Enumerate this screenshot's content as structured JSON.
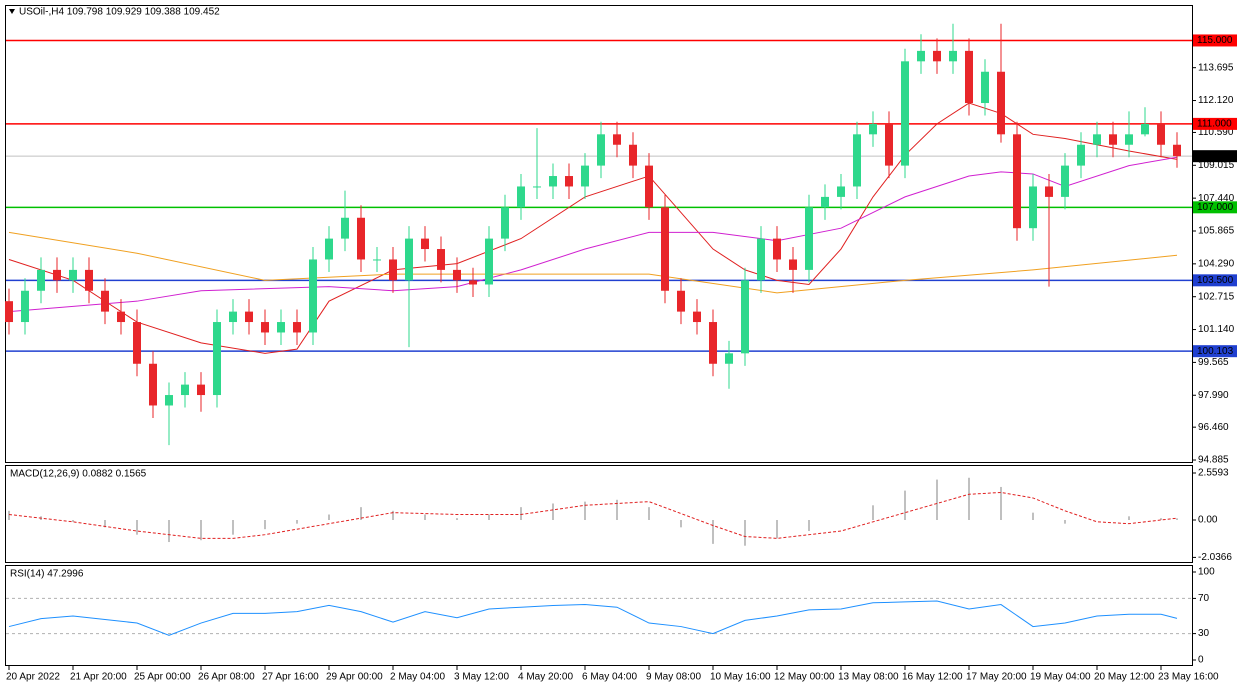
{
  "chart_data": {
    "type": "candlestick",
    "title": "USOil-,H4  109.798 109.929 109.388 109.452",
    "categories": [
      "20 Apr 2022",
      null,
      null,
      null,
      "21 Apr 20:00",
      null,
      null,
      null,
      "25 Apr 00:00",
      null,
      null,
      null,
      "26 Apr 08:00",
      null,
      null,
      null,
      "27 Apr 16:00",
      null,
      null,
      null,
      "29 Apr 00:00",
      null,
      null,
      null,
      "2 May 04:00",
      null,
      null,
      null,
      "3 May 12:00",
      null,
      null,
      null,
      "4 May 20:00",
      null,
      null,
      null,
      "6 May 04:00",
      null,
      null,
      null,
      "9 May 08:00",
      null,
      null,
      null,
      "10 May 16:00",
      null,
      null,
      null,
      "12 May 00:00",
      null,
      null,
      null,
      "13 May 08:00",
      null,
      null,
      null,
      "16 May 12:00",
      null,
      null,
      null,
      "17 May 20:00",
      null,
      null,
      null,
      "19 May 04:00",
      null,
      null,
      null,
      "20 May 12:00",
      null,
      null,
      null,
      "23 May 16:00",
      null
    ],
    "open": [
      102.5,
      101.5,
      103.0,
      104.0,
      103.5,
      104.0,
      103.0,
      102.0,
      101.5,
      99.5,
      97.5,
      98.0,
      98.5,
      98.0,
      101.5,
      102.0,
      101.5,
      101.0,
      101.5,
      101.0,
      104.5,
      105.5,
      106.5,
      104.5,
      104.5,
      103.5,
      105.5,
      105.0,
      104.0,
      103.5,
      103.3,
      105.5,
      107.0,
      108.0,
      108.0,
      108.5,
      108.0,
      109.0,
      110.5,
      110.0,
      109.0,
      107.0,
      103.0,
      102.0,
      101.5,
      99.5,
      100.0,
      103.5,
      105.5,
      104.5,
      104.0,
      107.0,
      107.5,
      108.0,
      110.5,
      111.0,
      109.0,
      114.0,
      114.5,
      114.0,
      114.5,
      112.0,
      113.5,
      110.5,
      106.0,
      108.0,
      107.5,
      109.0,
      110.0,
      110.5,
      110.0,
      110.5,
      111.0,
      110.0
    ],
    "high": [
      103.1,
      103.6,
      104.6,
      104.6,
      104.6,
      104.6,
      103.6,
      102.6,
      102.1,
      100.1,
      98.6,
      99.1,
      99.1,
      102.1,
      102.6,
      102.6,
      102.1,
      102.1,
      102.1,
      105.1,
      106.1,
      107.8,
      107.1,
      105.1,
      105.1,
      106.1,
      106.1,
      105.6,
      104.6,
      104.1,
      106.1,
      107.6,
      108.6,
      110.8,
      109.1,
      109.1,
      109.6,
      111.1,
      111.1,
      110.6,
      109.6,
      107.6,
      103.6,
      102.6,
      102.1,
      100.6,
      104.1,
      106.1,
      106.1,
      105.1,
      107.6,
      108.1,
      108.6,
      111.1,
      111.6,
      111.6,
      114.6,
      115.3,
      115.1,
      115.8,
      115.1,
      114.1,
      115.8,
      111.1,
      108.6,
      108.6,
      109.6,
      110.6,
      111.1,
      111.1,
      111.6,
      111.8,
      111.6,
      110.6
    ],
    "low": [
      100.9,
      100.9,
      102.4,
      102.9,
      102.9,
      102.4,
      101.4,
      100.9,
      98.9,
      96.9,
      95.6,
      97.4,
      97.2,
      97.4,
      100.9,
      100.9,
      100.4,
      100.4,
      100.4,
      100.4,
      103.9,
      104.9,
      103.9,
      103.9,
      102.9,
      100.3,
      104.4,
      103.4,
      102.9,
      102.7,
      102.7,
      104.9,
      106.4,
      107.4,
      107.4,
      107.4,
      107.4,
      108.4,
      109.4,
      108.4,
      106.4,
      102.4,
      101.4,
      100.9,
      98.9,
      98.3,
      99.4,
      102.9,
      103.9,
      102.9,
      103.4,
      106.4,
      106.9,
      107.4,
      109.9,
      108.4,
      108.4,
      113.4,
      113.4,
      113.4,
      111.4,
      111.4,
      110.1,
      105.4,
      105.4,
      103.2,
      106.9,
      108.4,
      109.4,
      109.4,
      109.4,
      110.4,
      109.4,
      108.9
    ],
    "close": [
      101.5,
      103.0,
      104.0,
      103.5,
      104.0,
      103.0,
      102.0,
      101.5,
      99.5,
      97.5,
      98.0,
      98.5,
      98.0,
      101.5,
      102.0,
      101.5,
      101.0,
      101.5,
      101.0,
      104.5,
      105.5,
      106.5,
      104.5,
      104.5,
      103.5,
      105.5,
      105.0,
      104.0,
      103.5,
      103.3,
      105.5,
      107.0,
      108.0,
      108.0,
      108.5,
      108.0,
      109.0,
      110.5,
      110.0,
      109.0,
      107.0,
      103.0,
      102.0,
      101.5,
      99.5,
      100.0,
      103.5,
      105.5,
      104.5,
      104.0,
      107.0,
      107.5,
      108.0,
      110.5,
      111.0,
      109.0,
      114.0,
      114.5,
      114.0,
      114.5,
      112.0,
      113.5,
      110.5,
      106.0,
      108.0,
      107.5,
      109.0,
      110.0,
      110.5,
      110.0,
      110.5,
      111.0,
      110.0,
      109.452
    ],
    "colors": {
      "up": "#2ed88c",
      "down": "#e8262a"
    },
    "ylim": [
      94.79,
      116.7
    ],
    "yticks": [
      {
        "value": 113.695,
        "label": "113.695"
      },
      {
        "value": 112.12,
        "label": "112.120"
      },
      {
        "value": 110.59,
        "label": "110.590"
      },
      {
        "value": 109.015,
        "label": "109.015"
      },
      {
        "value": 107.44,
        "label": "107.440"
      },
      {
        "value": 105.865,
        "label": "105.865"
      },
      {
        "value": 104.29,
        "label": "104.290"
      },
      {
        "value": 102.715,
        "label": "102.715"
      },
      {
        "value": 101.14,
        "label": "101.140"
      },
      {
        "value": 99.565,
        "label": "99.565"
      },
      {
        "value": 97.99,
        "label": "97.990"
      },
      {
        "value": 96.46,
        "label": "96.460"
      },
      {
        "value": 94.885,
        "label": "94.885"
      }
    ],
    "levels": [
      {
        "value": 115,
        "label": "115.000",
        "color": "#ff0000"
      },
      {
        "value": 111,
        "label": "111.000",
        "color": "#ff0000"
      },
      {
        "value": 107,
        "label": "107.000",
        "color": "#00c000"
      },
      {
        "value": 103.5,
        "label": "103.500",
        "color": "#2040d0"
      },
      {
        "value": 100.103,
        "label": "100.103",
        "color": "#2040d0"
      },
      {
        "value": 109.452,
        "label": "109.452",
        "color": "#000000"
      }
    ],
    "series": [
      {
        "color": "#e02020",
        "x": [
          0,
          4,
          8,
          12,
          16,
          18,
          20,
          24,
          28,
          32,
          36,
          40,
          44,
          46,
          48,
          50,
          52,
          54,
          56,
          58,
          60,
          62,
          64,
          66,
          68,
          70,
          73
        ],
        "values": [
          104.5,
          103.5,
          101.5,
          100.5,
          100.0,
          100.2,
          102.5,
          104,
          104.3,
          105.5,
          107.5,
          108.5,
          105,
          104,
          103.5,
          103.3,
          105,
          107.5,
          109.5,
          111,
          112,
          111.5,
          110.5,
          110.3,
          110.0,
          109.7,
          109.3
        ]
      },
      {
        "color": "#d020d0",
        "x": [
          0,
          8,
          12,
          20,
          24,
          28,
          32,
          36,
          40,
          44,
          48,
          52,
          56,
          60,
          62,
          64,
          66,
          70,
          73
        ],
        "values": [
          102,
          102.5,
          103,
          103.2,
          103.0,
          103.2,
          104,
          105,
          105.8,
          105.8,
          105.4,
          106.0,
          107.5,
          108.5,
          108.7,
          108.6,
          108.0,
          109.0,
          109.4
        ]
      },
      {
        "color": "#f0a020",
        "x": [
          0,
          8,
          16,
          24,
          32,
          40,
          48,
          56,
          64,
          73
        ],
        "values": [
          105.8,
          104.8,
          103.5,
          103.8,
          103.8,
          103.8,
          102.9,
          103.5,
          104.0,
          104.7
        ]
      }
    ],
    "macd": {
      "title": "MACD(12,26,9) 0.0882 0.1565",
      "ylim": [
        -2.287,
        2.94
      ],
      "yticks": [
        2.5593,
        {
          "value": 0,
          "label": "0.00"
        },
        -2.0366
      ],
      "x": [
        0,
        2,
        4,
        6,
        8,
        10,
        12,
        14,
        16,
        18,
        20,
        22,
        24,
        26,
        28,
        30,
        32,
        34,
        36,
        38,
        40,
        42,
        44,
        46,
        48,
        50,
        52,
        54,
        56,
        58,
        60,
        62,
        64,
        66,
        68,
        70,
        72,
        73
      ],
      "histogram": [
        0.5,
        0.2,
        -0.1,
        -0.4,
        -0.8,
        -1.2,
        -1.1,
        -0.8,
        -0.5,
        -0.2,
        0.3,
        0.7,
        0.5,
        0.3,
        0.1,
        0.3,
        0.7,
        0.9,
        1.0,
        1.1,
        0.7,
        -0.4,
        -1.3,
        -1.4,
        -1.0,
        -0.6,
        0.0,
        0.8,
        1.6,
        2.2,
        2.3,
        1.8,
        0.4,
        -0.2,
        0.0,
        0.2,
        0.1,
        0.09
      ],
      "signal_x": [
        0,
        4,
        8,
        12,
        14,
        16,
        20,
        24,
        28,
        32,
        36,
        40,
        44,
        46,
        48,
        52,
        56,
        60,
        62,
        64,
        66,
        68,
        70,
        73
      ],
      "signal": [
        0.3,
        -0.1,
        -0.6,
        -1.0,
        -1.0,
        -0.8,
        -0.2,
        0.4,
        0.3,
        0.3,
        0.8,
        1.0,
        -0.3,
        -0.9,
        -1.0,
        -0.6,
        0.4,
        1.4,
        1.5,
        1.2,
        0.5,
        -0.1,
        -0.2,
        0.1
      ],
      "hist_color": "#c0c0c0",
      "signal_color": "#e02020"
    },
    "rsi": {
      "title": "RSI(14) 47.2996",
      "ylim": [
        0,
        100
      ],
      "yticks": [
        100,
        70,
        30,
        0
      ],
      "levels": [
        70,
        30
      ],
      "color": "#1e90ff",
      "x": [
        0,
        2,
        4,
        6,
        8,
        10,
        12,
        14,
        16,
        18,
        20,
        22,
        24,
        26,
        28,
        30,
        32,
        34,
        36,
        38,
        40,
        42,
        44,
        46,
        48,
        50,
        52,
        54,
        56,
        58,
        60,
        62,
        64,
        66,
        68,
        70,
        72,
        73
      ],
      "values": [
        38,
        47,
        50,
        46,
        42,
        28,
        42,
        53,
        53,
        55,
        62,
        55,
        43,
        55,
        48,
        58,
        60,
        62,
        63,
        60,
        42,
        38,
        30,
        45,
        50,
        57,
        58,
        65,
        66,
        67,
        58,
        63,
        38,
        42,
        50,
        52,
        52,
        47.3
      ]
    }
  }
}
